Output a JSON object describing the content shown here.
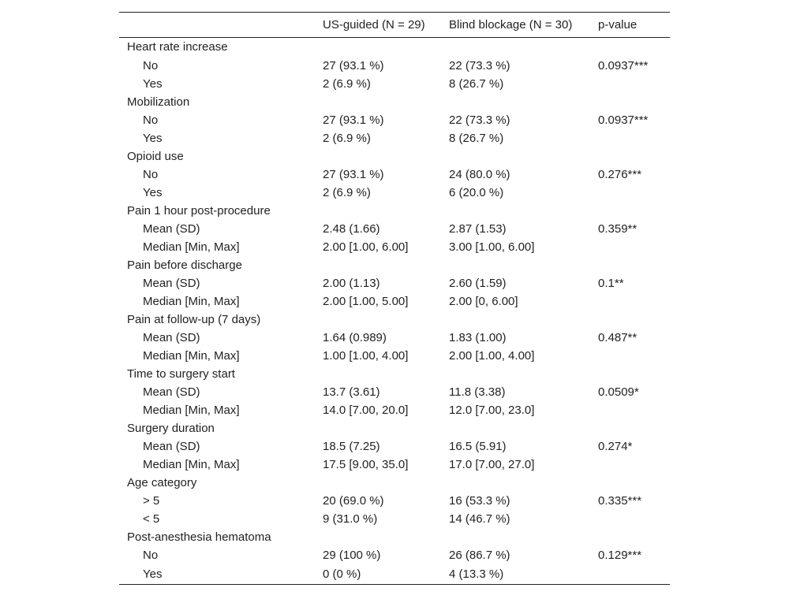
{
  "table": {
    "header": [
      "",
      "US-guided (N = 29)",
      "Blind blockage (N = 30)",
      "p-value"
    ],
    "groups": [
      {
        "label": "Heart rate increase",
        "rows": [
          {
            "label": "No",
            "us": "27 (93.1 %)",
            "blind": "22 (73.3 %)",
            "p": "0.0937***"
          },
          {
            "label": "Yes",
            "us": "2 (6.9 %)",
            "blind": "8 (26.7 %)"
          }
        ]
      },
      {
        "label": "Mobilization",
        "rows": [
          {
            "label": "No",
            "us": "27 (93.1 %)",
            "blind": "22 (73.3 %)",
            "p": "0.0937***"
          },
          {
            "label": "Yes",
            "us": "2 (6.9 %)",
            "blind": "8 (26.7 %)"
          }
        ]
      },
      {
        "label": "Opioid use",
        "rows": [
          {
            "label": "No",
            "us": "27 (93.1 %)",
            "blind": "24 (80.0 %)",
            "p": "0.276***"
          },
          {
            "label": "Yes",
            "us": "2 (6.9 %)",
            "blind": "6 (20.0 %)"
          }
        ]
      },
      {
        "label": "Pain 1 hour post-procedure",
        "rows": [
          {
            "label": "Mean (SD)",
            "us": "2.48 (1.66)",
            "blind": "2.87 (1.53)",
            "p": "0.359**"
          },
          {
            "label": "Median [Min, Max]",
            "us": "2.00 [1.00, 6.00]",
            "blind": "3.00 [1.00, 6.00]"
          }
        ]
      },
      {
        "label": "Pain before discharge",
        "rows": [
          {
            "label": "Mean (SD)",
            "us": "2.00 (1.13)",
            "blind": "2.60 (1.59)",
            "p": "0.1**"
          },
          {
            "label": "Median [Min, Max]",
            "us": "2.00 [1.00, 5.00]",
            "blind": "2.00 [0, 6.00]"
          }
        ]
      },
      {
        "label": "Pain at follow-up (7 days)",
        "rows": [
          {
            "label": "Mean (SD)",
            "us": "1.64 (0.989)",
            "blind": "1.83 (1.00)",
            "p": "0.487**"
          },
          {
            "label": "Median [Min, Max]",
            "us": "1.00 [1.00, 4.00]",
            "blind": "2.00 [1.00, 4.00]"
          }
        ]
      },
      {
        "label": "Time to surgery start",
        "rows": [
          {
            "label": "Mean (SD)",
            "us": "13.7 (3.61)",
            "blind": "11.8 (3.38)",
            "p": "0.0509*"
          },
          {
            "label": "Median [Min, Max]",
            "us": "14.0 [7.00, 20.0]",
            "blind": "12.0 [7.00, 23.0]"
          }
        ]
      },
      {
        "label": "Surgery duration",
        "rows": [
          {
            "label": "Mean (SD)",
            "us": "18.5 (7.25)",
            "blind": "16.5 (5.91)",
            "p": "0.274*"
          },
          {
            "label": "Median [Min, Max]",
            "us": "17.5 [9.00, 35.0]",
            "blind": "17.0 [7.00, 27.0]"
          }
        ]
      },
      {
        "label": "Age category",
        "rows": [
          {
            "label": "> 5",
            "us": "20 (69.0 %)",
            "blind": "16 (53.3 %)",
            "p": "0.335***"
          },
          {
            "label": "< 5",
            "us": "9 (31.0 %)",
            "blind": "14 (46.7 %)"
          }
        ]
      },
      {
        "label": "Post-anesthesia hematoma",
        "rows": [
          {
            "label": "No",
            "us": "29 (100 %)",
            "blind": "26 (86.7 %)",
            "p": "0.129***"
          },
          {
            "label": "Yes",
            "us": "0 (0 %)",
            "blind": "4 (13.3 %)"
          }
        ]
      }
    ]
  }
}
